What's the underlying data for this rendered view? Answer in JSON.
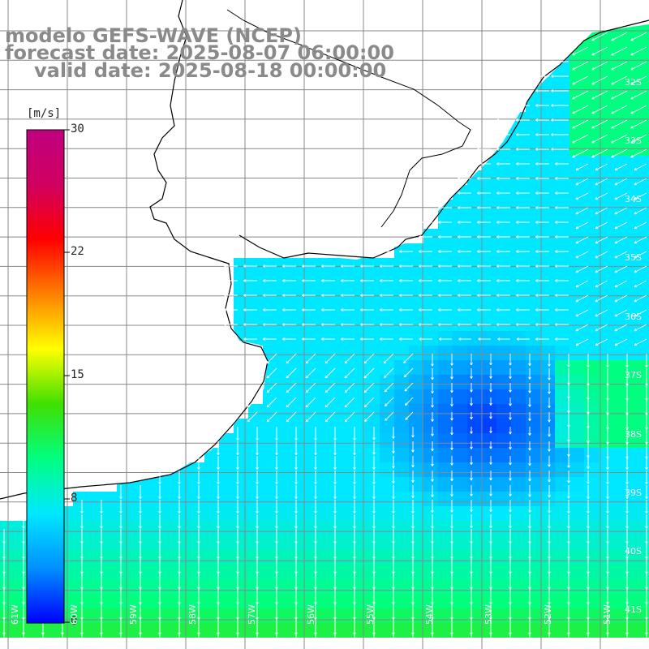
{
  "header": {
    "line1": "modelo GEFS-WAVE (NCEP)",
    "line2": "forecast date: 2025-08-07 06:00:00",
    "line3": "valid date: 2025-08-18 00:00:00"
  },
  "colorbar": {
    "unit": "[m/s]",
    "ticks": [
      "30",
      "22",
      "15",
      "8",
      "0"
    ],
    "colors": [
      "#0000ff",
      "#0090ff",
      "#00e8ff",
      "#00ff80",
      "#40e000",
      "#ffff00",
      "#ff8000",
      "#ff0000",
      "#d00060",
      "#c0007f"
    ]
  },
  "map": {
    "lat_labels": [
      "32S",
      "33S",
      "34S",
      "35S",
      "36S",
      "37S",
      "38S",
      "39S",
      "40S",
      "41S"
    ],
    "lon_labels": [
      "61W",
      "60W",
      "59W",
      "58W",
      "57W",
      "56W",
      "55W",
      "54W",
      "53W",
      "52W",
      "51W"
    ],
    "land_color": "#ffffff",
    "grid_color": "#888888",
    "arrow_color": "#ffffff",
    "coast_color": "#000000"
  }
}
